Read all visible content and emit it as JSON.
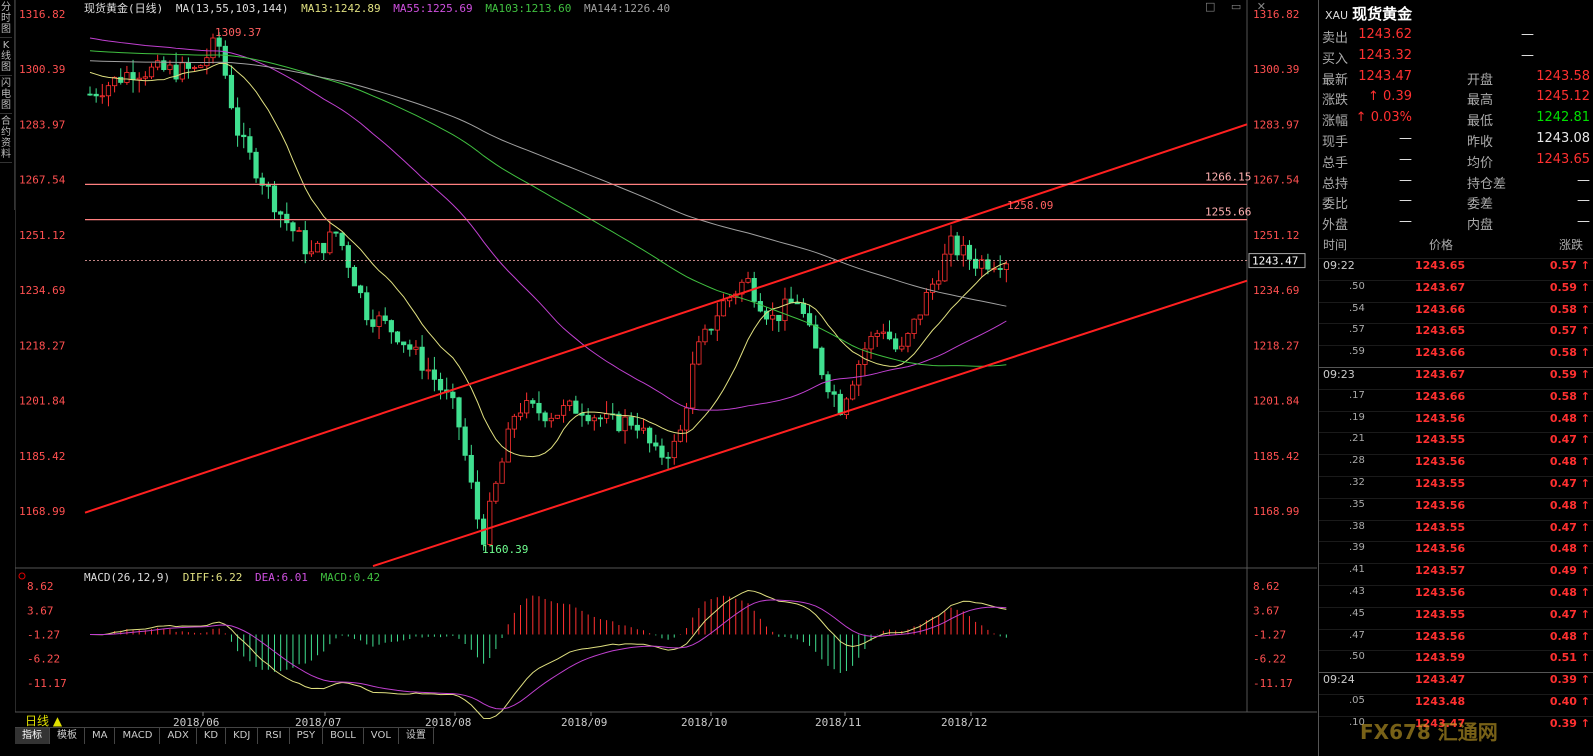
{
  "title_bar": {
    "symbol_period": "现货黄金(日线)",
    "ma_label": "MA(13,55,103,144)",
    "ma13": "MA13:1242.89",
    "ma55": "MA55:1225.69",
    "ma103": "MA103:1213.60",
    "ma144": "MA144:1226.40",
    "window_buttons": "□ ▭ ✕"
  },
  "left_tabs": [
    "分时图",
    "K线图",
    "闪电图",
    "合约资料"
  ],
  "macd_title": {
    "label": "MACD(26,12,9)",
    "diff": "DIFF:6.22",
    "dea": "DEA:6.01",
    "macd": "MACD:0.42"
  },
  "period_label": "日线 ▲",
  "bottom_tabs": [
    "指标",
    "模板",
    "MA",
    "MACD",
    "ADX",
    "KD",
    "KDJ",
    "RSI",
    "PSY",
    "BOLL",
    "VOL",
    "设置"
  ],
  "chart_data": {
    "type": "candlestick",
    "y_ticks": [
      "1316.82",
      "1300.39",
      "1283.97",
      "1267.54",
      "1251.12",
      "1234.69",
      "1218.27",
      "1201.84",
      "1185.42",
      "1168.99"
    ],
    "ylim": [
      1152.56,
      1316.82
    ],
    "x_labels": [
      "2018/06",
      "2018/07",
      "2018/08",
      "2018/09",
      "2018/10",
      "2018/11",
      "2018/12"
    ],
    "annotations": [
      "1309.37",
      "1160.39",
      "1258.09",
      "1266.15",
      "1255.66"
    ],
    "last_price_label": "1243.47",
    "horizontal_levels": [
      1266.15,
      1255.66
    ],
    "current_price": 1243.47,
    "macd_ticks": [
      "8.62",
      "3.67",
      "-1.27",
      "-6.22",
      "-11.17"
    ],
    "macd_ylim": [
      -13.65,
      11.1
    ],
    "colors": {
      "up": "#ff3030",
      "down": "#40e090",
      "ma13": "#e0e080",
      "ma55": "#c040d0",
      "ma103": "#40c040",
      "ma144": "#a0a0a0",
      "channel": "#ff2020",
      "level": "#ff8080"
    }
  },
  "quote_panel": {
    "code": "XAU",
    "name": "现货黄金",
    "rows": [
      {
        "l": "卖出",
        "v": "1243.62",
        "l2": "",
        "v2": "—"
      },
      {
        "l": "买入",
        "v": "1243.32",
        "l2": "",
        "v2": "—"
      },
      {
        "l": "最新",
        "v": "1243.47",
        "l2": "开盘",
        "v2": "1243.58"
      },
      {
        "l": "涨跌",
        "v": "↑ 0.39",
        "l2": "最高",
        "v2": "1245.12"
      },
      {
        "l": "涨幅",
        "v": "↑ 0.03%",
        "l2": "最低",
        "v2": "1242.81"
      },
      {
        "l": "现手",
        "v": "—",
        "l2": "昨收",
        "v2": "1243.08"
      },
      {
        "l": "总手",
        "v": "—",
        "l2": "均价",
        "v2": "1243.65"
      },
      {
        "l": "总持",
        "v": "—",
        "l2": "持仓差",
        "v2": "—"
      },
      {
        "l": "委比",
        "v": "—",
        "l2": "委差",
        "v2": "—"
      },
      {
        "l": "外盘",
        "v": "—",
        "l2": "内盘",
        "v2": "—"
      }
    ],
    "tick_header": {
      "time": "时间",
      "price": "价格",
      "change": "涨跌"
    },
    "ticks": [
      {
        "t": "09:22",
        "p": "1243.65",
        "c": "0.57 ↑",
        "major": true
      },
      {
        "t": ".50",
        "p": "1243.67",
        "c": "0.59 ↑"
      },
      {
        "t": ".54",
        "p": "1243.66",
        "c": "0.58 ↑"
      },
      {
        "t": ".57",
        "p": "1243.65",
        "c": "0.57 ↑"
      },
      {
        "t": ".59",
        "p": "1243.66",
        "c": "0.58 ↑"
      },
      {
        "t": "09:23",
        "p": "1243.67",
        "c": "0.59 ↑",
        "major": true
      },
      {
        "t": ".17",
        "p": "1243.66",
        "c": "0.58 ↑"
      },
      {
        "t": ".19",
        "p": "1243.56",
        "c": "0.48 ↑"
      },
      {
        "t": ".21",
        "p": "1243.55",
        "c": "0.47 ↑"
      },
      {
        "t": ".28",
        "p": "1243.56",
        "c": "0.48 ↑"
      },
      {
        "t": ".32",
        "p": "1243.55",
        "c": "0.47 ↑"
      },
      {
        "t": ".35",
        "p": "1243.56",
        "c": "0.48 ↑"
      },
      {
        "t": ".38",
        "p": "1243.55",
        "c": "0.47 ↑"
      },
      {
        "t": ".39",
        "p": "1243.56",
        "c": "0.48 ↑"
      },
      {
        "t": ".41",
        "p": "1243.57",
        "c": "0.49 ↑"
      },
      {
        "t": ".43",
        "p": "1243.56",
        "c": "0.48 ↑"
      },
      {
        "t": ".45",
        "p": "1243.55",
        "c": "0.47 ↑"
      },
      {
        "t": ".47",
        "p": "1243.56",
        "c": "0.48 ↑"
      },
      {
        "t": ".50",
        "p": "1243.59",
        "c": "0.51 ↑"
      },
      {
        "t": "09:24",
        "p": "1243.47",
        "c": "0.39 ↑",
        "major": true
      },
      {
        "t": ".05",
        "p": "1243.48",
        "c": "0.40 ↑"
      },
      {
        "t": ".10",
        "p": "1243.47",
        "c": "0.39 ↑"
      }
    ]
  },
  "watermark": "FX678 汇通网"
}
